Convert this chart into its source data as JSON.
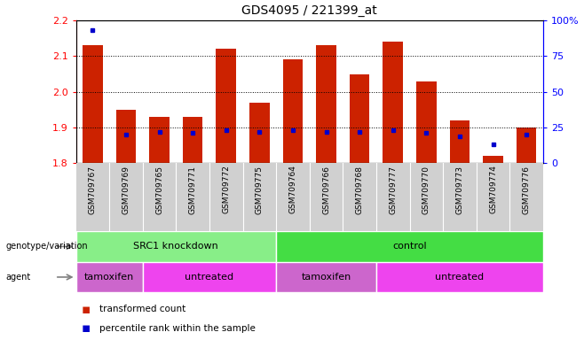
{
  "title": "GDS4095 / 221399_at",
  "samples": [
    "GSM709767",
    "GSM709769",
    "GSM709765",
    "GSM709771",
    "GSM709772",
    "GSM709775",
    "GSM709764",
    "GSM709766",
    "GSM709768",
    "GSM709777",
    "GSM709770",
    "GSM709773",
    "GSM709774",
    "GSM709776"
  ],
  "transformed_count": [
    2.13,
    1.95,
    1.93,
    1.93,
    2.12,
    1.97,
    2.09,
    2.13,
    2.05,
    2.14,
    2.03,
    1.92,
    1.82,
    1.9
  ],
  "percentile_rank": [
    93,
    20,
    22,
    21,
    23,
    22,
    23,
    22,
    22,
    23,
    21,
    19,
    13,
    20
  ],
  "base_value": 1.8,
  "ylim_left": [
    1.8,
    2.2
  ],
  "ylim_right": [
    0,
    100
  ],
  "yticks_left": [
    1.8,
    1.9,
    2.0,
    2.1,
    2.2
  ],
  "yticks_right": [
    0,
    25,
    50,
    75,
    100
  ],
  "ytick_labels_right": [
    "0",
    "25",
    "50",
    "75",
    "100%"
  ],
  "bar_color": "#cc2200",
  "dot_color": "#0000cc",
  "genotype_groups": [
    {
      "label": "SRC1 knockdown",
      "start": 0,
      "end": 6,
      "color": "#88ee88"
    },
    {
      "label": "control",
      "start": 6,
      "end": 14,
      "color": "#44dd44"
    }
  ],
  "agent_groups": [
    {
      "label": "tamoxifen",
      "start": 0,
      "end": 2,
      "color": "#cc66cc"
    },
    {
      "label": "untreated",
      "start": 2,
      "end": 6,
      "color": "#ee44ee"
    },
    {
      "label": "tamoxifen",
      "start": 6,
      "end": 9,
      "color": "#cc66cc"
    },
    {
      "label": "untreated",
      "start": 9,
      "end": 14,
      "color": "#ee44ee"
    }
  ],
  "legend": [
    {
      "label": "transformed count",
      "color": "#cc2200"
    },
    {
      "label": "percentile rank within the sample",
      "color": "#0000cc"
    }
  ]
}
